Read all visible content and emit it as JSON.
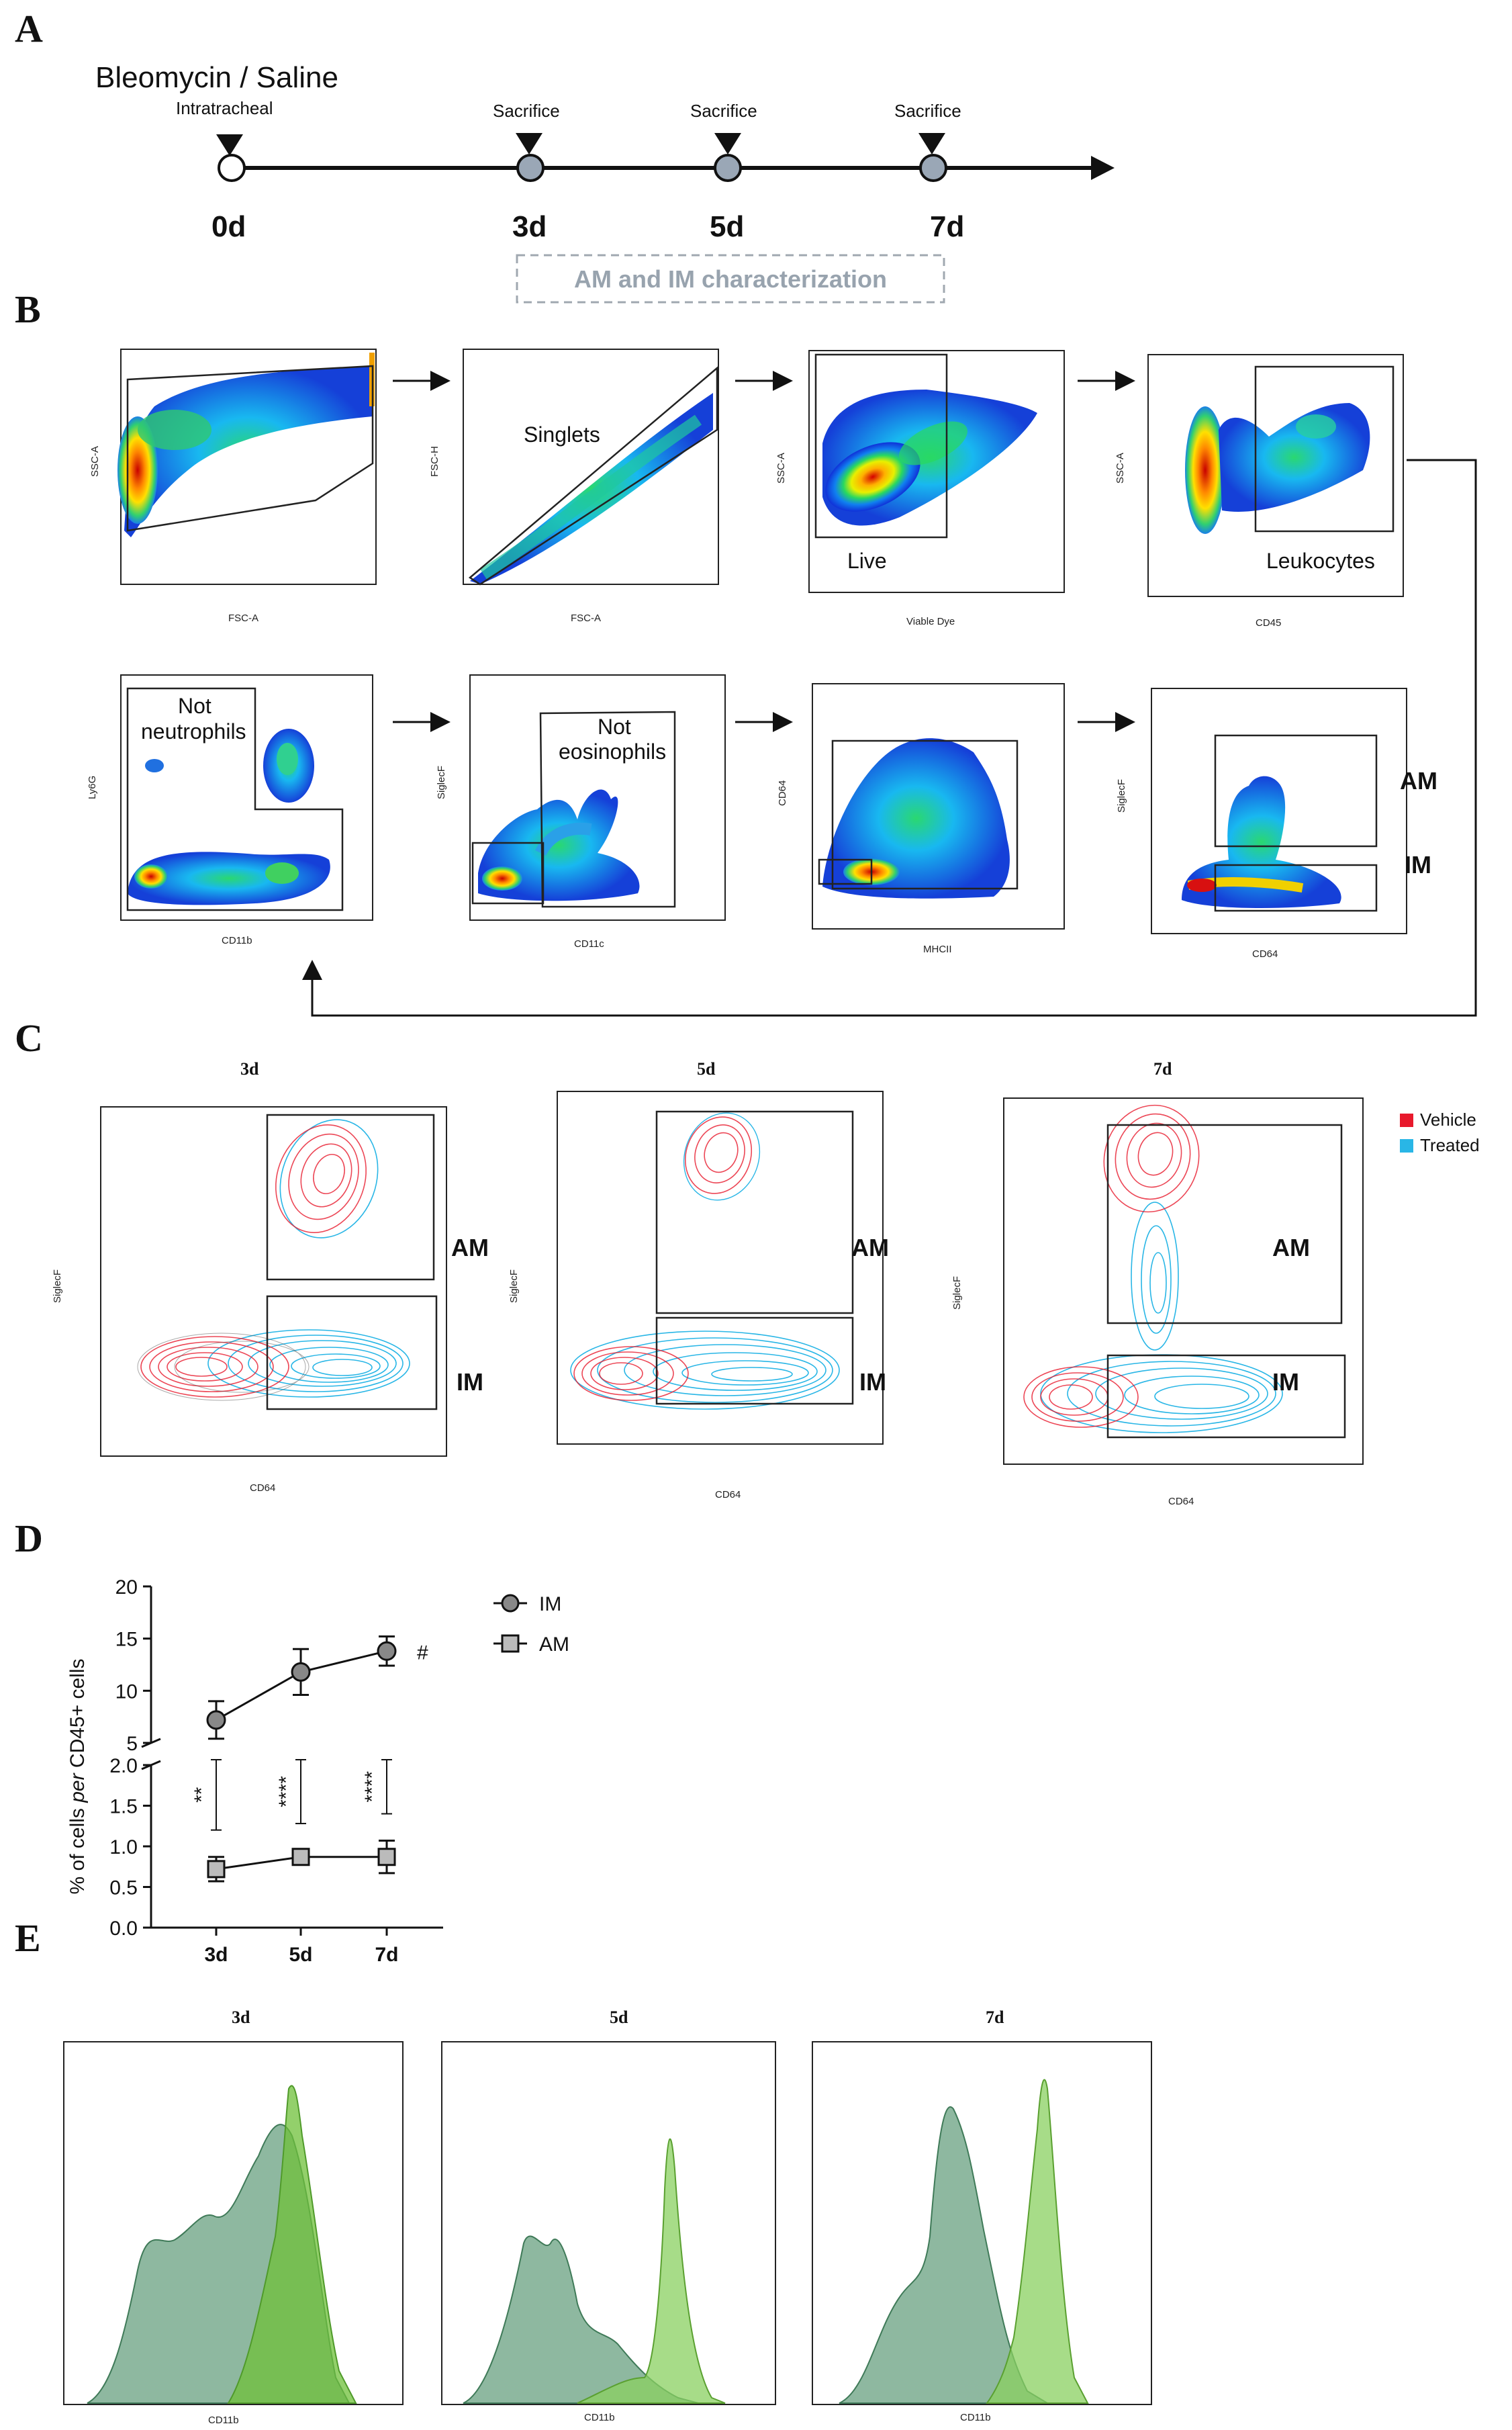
{
  "panels": {
    "A": "A",
    "B": "B",
    "C": "C",
    "D": "D",
    "E": "E"
  },
  "timeline": {
    "title": "Bleomycin / Saline",
    "route": "Intratracheal",
    "events": [
      {
        "label": "",
        "day": "0d"
      },
      {
        "label": "Sacrifice",
        "day": "3d"
      },
      {
        "label": "Sacrifice",
        "day": "5d"
      },
      {
        "label": "Sacrifice",
        "day": "7d"
      }
    ],
    "box_label": "AM and IM characterization",
    "colors": {
      "line": "#111111",
      "marker_fill": "#9aa7b6",
      "box_text": "#98a3ae"
    }
  },
  "gating": {
    "row1": [
      {
        "ylabel": "SSC-A",
        "xlabel": "FSC-A",
        "gate": ""
      },
      {
        "ylabel": "FSC-H",
        "xlabel": "FSC-A",
        "gate": "Singlets"
      },
      {
        "ylabel": "SSC-A",
        "xlabel": "Viable Dye",
        "gate": "Live"
      },
      {
        "ylabel": "SSC-A",
        "xlabel": "CD45",
        "gate": "Leukocytes"
      }
    ],
    "row2": [
      {
        "ylabel": "Ly6G",
        "xlabel": "CD11b",
        "gate_l1": "Not",
        "gate_l2": "neutrophils"
      },
      {
        "ylabel": "SiglecF",
        "xlabel": "CD11c",
        "gate_l1": "Not",
        "gate_l2": "eosinophils"
      },
      {
        "ylabel": "CD64",
        "xlabel": "MHCII",
        "gate_l1": "",
        "gate_l2": ""
      },
      {
        "ylabel": "SiglecF",
        "xlabel": "CD64",
        "gate_am": "AM",
        "gate_im": "IM"
      }
    ]
  },
  "contour": {
    "plots": [
      {
        "title": "3d",
        "xlabel": "CD64",
        "ylabel": "SiglecF",
        "am": "AM",
        "im": "IM"
      },
      {
        "title": "5d",
        "xlabel": "CD64",
        "ylabel": "SiglecF",
        "am": "AM",
        "im": "IM"
      },
      {
        "title": "7d",
        "xlabel": "CD64",
        "ylabel": "SiglecF",
        "am": "AM",
        "im": "IM"
      }
    ],
    "legend": [
      {
        "name": "Vehicle",
        "color": "#e8192c"
      },
      {
        "name": "Treated",
        "color": "#29b6e6"
      }
    ]
  },
  "chart_data": {
    "type": "line",
    "ylabel_pre": "% of cells ",
    "ylabel_em": "per",
    "ylabel_post": " CD45+ cells",
    "categories": [
      "3d",
      "5d",
      "7d"
    ],
    "y_break": {
      "lower_range": [
        0.0,
        2.0
      ],
      "upper_range": [
        5,
        20
      ]
    },
    "upper_ticks": [
      "5",
      "10",
      "15",
      "20"
    ],
    "lower_ticks": [
      "0.0",
      "0.5",
      "1.0",
      "1.5",
      "2.0"
    ],
    "series": [
      {
        "name": "IM",
        "marker": "circle",
        "values": [
          7.2,
          11.8,
          13.8
        ],
        "errors": [
          1.8,
          2.2,
          1.4
        ],
        "annotation": "#"
      },
      {
        "name": "AM",
        "marker": "square",
        "values": [
          0.72,
          0.87,
          0.87
        ],
        "errors": [
          0.15,
          0.08,
          0.2
        ]
      }
    ],
    "significance": [
      "**",
      "****",
      "****"
    ]
  },
  "histograms": {
    "plots": [
      {
        "title": "3d",
        "xlabel": "CD11b"
      },
      {
        "title": "5d",
        "xlabel": "CD11b"
      },
      {
        "title": "7d",
        "xlabel": "CD11b"
      }
    ],
    "colors": {
      "dark": "#5e9a77",
      "light": "#7fc24a"
    }
  }
}
